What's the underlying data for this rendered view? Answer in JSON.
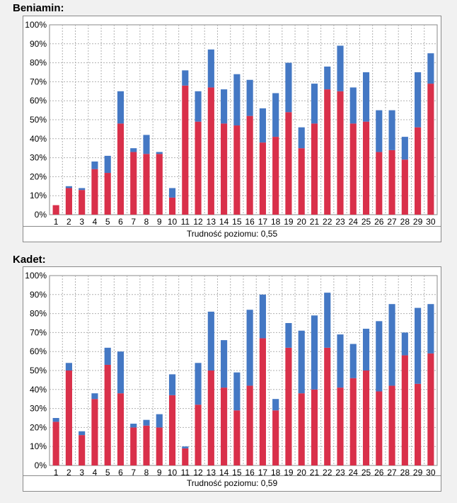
{
  "chart_data": [
    {
      "type": "bar",
      "stacked": true,
      "title": "Beniamin:",
      "caption": "Trudność poziomu: 0,55",
      "ylim": [
        0,
        100
      ],
      "y_ticks": [
        "0%",
        "10%",
        "20%",
        "30%",
        "40%",
        "50%",
        "60%",
        "70%",
        "80%",
        "90%",
        "100%"
      ],
      "grid": true,
      "categories": [
        "1",
        "2",
        "3",
        "4",
        "5",
        "6",
        "7",
        "8",
        "9",
        "10",
        "11",
        "12",
        "13",
        "14",
        "15",
        "16",
        "17",
        "18",
        "19",
        "20",
        "21",
        "22",
        "23",
        "24",
        "25",
        "26",
        "27",
        "28",
        "29",
        "30"
      ],
      "series": [
        {
          "color": "#d9304a",
          "values": [
            5,
            14,
            13,
            24,
            22,
            48,
            33,
            32,
            32,
            9,
            68,
            49,
            67,
            48,
            47,
            52,
            38,
            41,
            54,
            35,
            48,
            66,
            65,
            48,
            49,
            33,
            34,
            29,
            46,
            69
          ]
        },
        {
          "color": "#4478c4",
          "values": [
            0,
            1,
            1,
            4,
            9,
            17,
            2,
            10,
            1,
            5,
            8,
            16,
            20,
            18,
            27,
            19,
            18,
            23,
            26,
            11,
            21,
            12,
            24,
            19,
            26,
            22,
            21,
            12,
            29,
            16
          ]
        }
      ]
    },
    {
      "type": "bar",
      "stacked": true,
      "title": "Kadet:",
      "caption": "Trudność poziomu: 0,59",
      "ylim": [
        0,
        100
      ],
      "y_ticks": [
        "0%",
        "10%",
        "20%",
        "30%",
        "40%",
        "50%",
        "60%",
        "70%",
        "80%",
        "90%",
        "100%"
      ],
      "grid": true,
      "categories": [
        "1",
        "2",
        "3",
        "4",
        "5",
        "6",
        "7",
        "8",
        "9",
        "10",
        "11",
        "12",
        "13",
        "14",
        "15",
        "16",
        "17",
        "18",
        "19",
        "20",
        "21",
        "22",
        "23",
        "24",
        "25",
        "26",
        "27",
        "28",
        "29",
        "30"
      ],
      "series": [
        {
          "color": "#d9304a",
          "values": [
            23,
            50,
            16,
            35,
            53,
            38,
            20,
            21,
            20,
            37,
            9,
            32,
            50,
            41,
            29,
            42,
            67,
            29,
            62,
            38,
            40,
            62,
            41,
            46,
            50,
            39,
            42,
            58,
            43,
            59
          ]
        },
        {
          "color": "#4478c4",
          "values": [
            2,
            4,
            2,
            3,
            9,
            22,
            2,
            3,
            7,
            11,
            1,
            22,
            31,
            25,
            20,
            40,
            23,
            6,
            13,
            33,
            39,
            29,
            28,
            18,
            22,
            37,
            43,
            12,
            40,
            26
          ]
        }
      ]
    }
  ]
}
